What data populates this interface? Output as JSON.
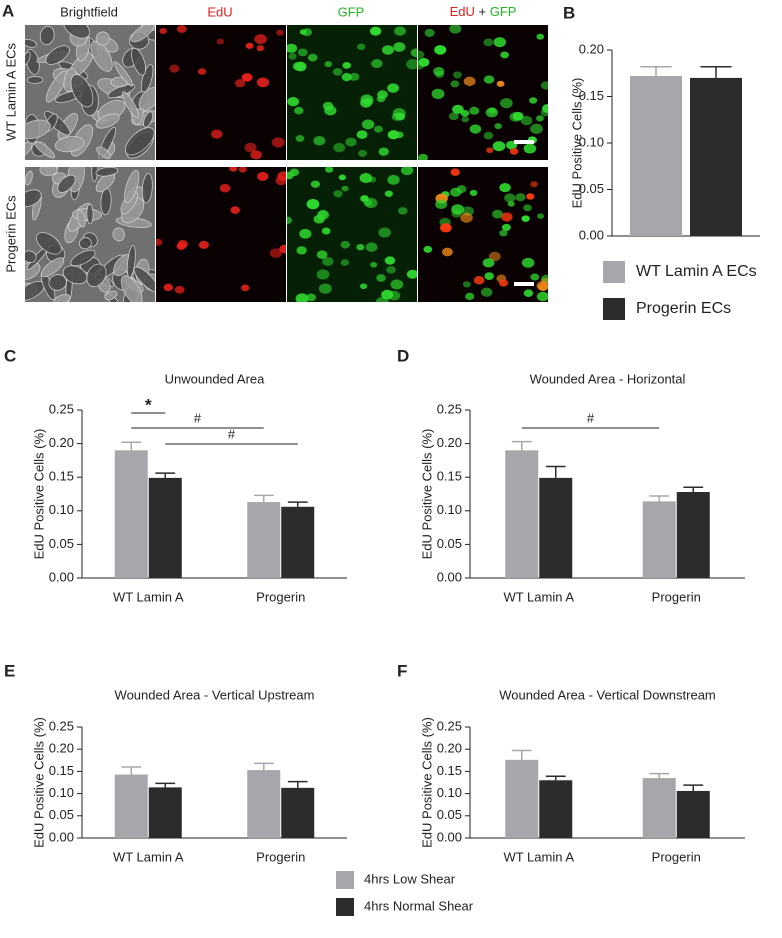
{
  "panel_labels": [
    "A",
    "B",
    "C",
    "D",
    "E",
    "F"
  ],
  "panel_a": {
    "columns": [
      "Brightfield",
      "EdU",
      "GFP"
    ],
    "merge_label": [
      "EdU",
      "+",
      "GFP"
    ],
    "rows": [
      "WT Lamin A ECs",
      "Progerin ECs"
    ]
  },
  "chart_data": [
    {
      "type": "bar",
      "categories": [
        null
      ],
      "ylabel": "EdU Positive Cells (%)",
      "ylim": [
        0,
        0.2
      ],
      "yticks": [
        {
          "value": 0,
          "label": "0.00"
        },
        {
          "value": 0.05,
          "label": "0.05"
        },
        {
          "value": 0.1,
          "label": "0.10"
        },
        {
          "value": 0.15,
          "label": "0.15"
        },
        {
          "value": 0.2,
          "label": "0.20"
        }
      ],
      "series": [
        {
          "name": "WT Lamin A ECs",
          "color": "#a7a7ab",
          "values": [
            0.172
          ],
          "errors": [
            0.01
          ]
        },
        {
          "name": "Progerin ECs",
          "color": "#2c2c2c",
          "values": [
            0.17
          ],
          "errors": [
            0.012
          ]
        }
      ]
    },
    {
      "type": "bar",
      "title": "Unwounded Area",
      "categories": [
        "WT Lamin A",
        "Progerin"
      ],
      "ylabel": "EdU Positive Cells (%)",
      "ylim": [
        0,
        0.25
      ],
      "yticks": [
        {
          "value": 0,
          "label": "0.00"
        },
        {
          "value": 0.05,
          "label": "0.05"
        },
        {
          "value": 0.1,
          "label": "0.10"
        },
        {
          "value": 0.15,
          "label": "0.15"
        },
        {
          "value": 0.2,
          "label": "0.20"
        },
        {
          "value": 0.25,
          "label": "0.25"
        }
      ],
      "series": [
        {
          "name": "4hrs Low Shear",
          "color": "#a7a7ab",
          "values": [
            0.19,
            0.113
          ],
          "errors": [
            0.012,
            0.01
          ]
        },
        {
          "name": "4hrs Normal Shear",
          "color": "#2c2c2c",
          "values": [
            0.149,
            0.106
          ],
          "errors": [
            0.007,
            0.007
          ]
        }
      ],
      "annotations": [
        "*",
        "#",
        "#"
      ]
    },
    {
      "type": "bar",
      "title": "Wounded Area - Horizontal",
      "categories": [
        "WT Lamin A",
        "Progerin"
      ],
      "ylabel": "EdU Positive Cells (%)",
      "ylim": [
        0,
        0.25
      ],
      "yticks": [
        {
          "value": 0,
          "label": "0.00"
        },
        {
          "value": 0.05,
          "label": "0.05"
        },
        {
          "value": 0.1,
          "label": "0.10"
        },
        {
          "value": 0.15,
          "label": "0.15"
        },
        {
          "value": 0.2,
          "label": "0.20"
        },
        {
          "value": 0.25,
          "label": "0.25"
        }
      ],
      "series": [
        {
          "name": "4hrs Low Shear",
          "color": "#a7a7ab",
          "values": [
            0.19,
            0.114
          ],
          "errors": [
            0.013,
            0.008
          ]
        },
        {
          "name": "4hrs Normal Shear",
          "color": "#2c2c2c",
          "values": [
            0.149,
            0.128
          ],
          "errors": [
            0.017,
            0.007
          ]
        }
      ],
      "annotations": [
        "#"
      ]
    },
    {
      "type": "bar",
      "title": "Wounded Area - Vertical Upstream",
      "categories": [
        "WT Lamin A",
        "Progerin"
      ],
      "ylabel": "EdU Positive Cells (%)",
      "ylim": [
        0,
        0.25
      ],
      "yticks": [
        {
          "value": 0,
          "label": "0.00"
        },
        {
          "value": 0.05,
          "label": "0.05"
        },
        {
          "value": 0.1,
          "label": "0.10"
        },
        {
          "value": 0.15,
          "label": "0.15"
        },
        {
          "value": 0.2,
          "label": "0.20"
        },
        {
          "value": 0.25,
          "label": "0.25"
        }
      ],
      "series": [
        {
          "name": "4hrs Low Shear",
          "color": "#a7a7ab",
          "values": [
            0.143,
            0.153
          ],
          "errors": [
            0.017,
            0.015
          ]
        },
        {
          "name": "4hrs Normal Shear",
          "color": "#2c2c2c",
          "values": [
            0.114,
            0.113
          ],
          "errors": [
            0.009,
            0.014
          ]
        }
      ]
    },
    {
      "type": "bar",
      "title": "Wounded Area - Vertical Downstream",
      "categories": [
        "WT Lamin A",
        "Progerin"
      ],
      "ylabel": "EdU Positive Cells (%)",
      "ylim": [
        0,
        0.25
      ],
      "yticks": [
        {
          "value": 0,
          "label": "0.00"
        },
        {
          "value": 0.05,
          "label": "0.05"
        },
        {
          "value": 0.1,
          "label": "0.10"
        },
        {
          "value": 0.15,
          "label": "0.15"
        },
        {
          "value": 0.2,
          "label": "0.20"
        },
        {
          "value": 0.25,
          "label": "0.25"
        }
      ],
      "series": [
        {
          "name": "4hrs Low Shear",
          "color": "#a7a7ab",
          "values": [
            0.176,
            0.135
          ],
          "errors": [
            0.021,
            0.01
          ]
        },
        {
          "name": "4hrs Normal Shear",
          "color": "#2c2c2c",
          "values": [
            0.13,
            0.106
          ],
          "errors": [
            0.009,
            0.013
          ]
        }
      ]
    }
  ]
}
